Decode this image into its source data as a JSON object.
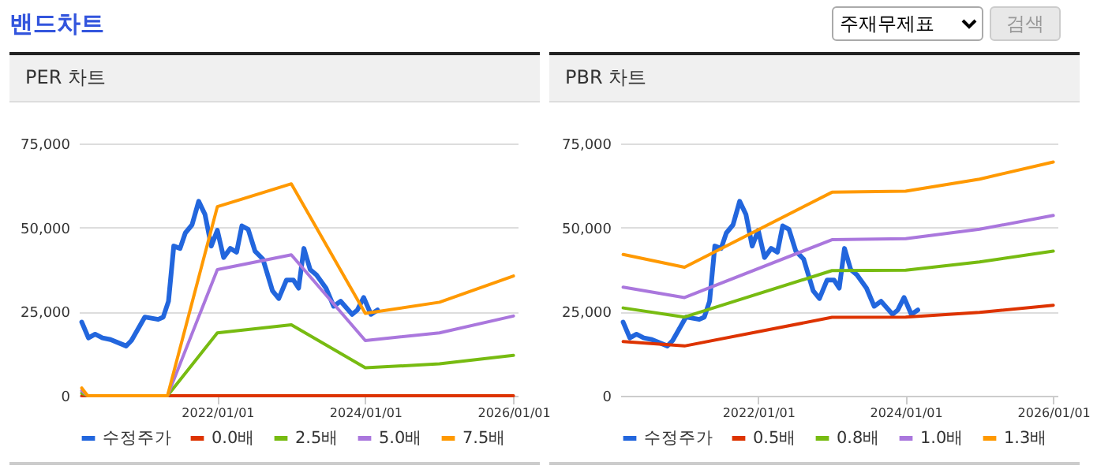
{
  "chart_data": [
    {
      "type": "other",
      "title": "밴드차트",
      "annotations": [
        "주재무제표",
        "검색"
      ]
    },
    {
      "type": "line",
      "title": "PER 차트",
      "xlim": [
        "2020-02-18",
        "2026-01-22"
      ],
      "ylim": [
        0,
        75000
      ],
      "xticks": [
        {
          "value": "2022-01-01",
          "label": "2022/01/01"
        },
        {
          "value": "2024-01-01",
          "label": "2024/01/01"
        },
        {
          "value": "2026-01-01",
          "label": "2026/01/01"
        }
      ],
      "yticks": [
        0,
        {
          "value": 25000,
          "label": "25,000"
        },
        {
          "value": 50000,
          "label": "50,000"
        },
        {
          "value": 75000,
          "label": "75,000"
        }
      ],
      "grid": "y",
      "legend": "bottom",
      "series": [
        {
          "name": "수정주가",
          "color": "#2266dd",
          "x": [
            "2020-03-03",
            "2020-04-05",
            "2020-05-08",
            "2020-06-13",
            "2020-07-23",
            "2020-10-08",
            "2020-11-03",
            "2021-01-08",
            "2021-03-15",
            "2021-04-09",
            "2021-05-05",
            "2021-05-31",
            "2021-07-01",
            "2021-07-27",
            "2021-08-29",
            "2021-10-01",
            "2021-11-01",
            "2021-12-02",
            "2022-01-01",
            "2022-02-01",
            "2022-03-06",
            "2022-04-06",
            "2022-05-02",
            "2022-06-02",
            "2022-07-06",
            "2022-08-14",
            "2022-09-30",
            "2022-10-31",
            "2022-12-08",
            "2023-01-11",
            "2023-02-06",
            "2023-03-04",
            "2023-04-04",
            "2023-05-05",
            "2023-06-21",
            "2023-07-29",
            "2023-09-01",
            "2023-10-28",
            "2023-11-23",
            "2023-12-24",
            "2024-01-29",
            "2024-03-01"
          ],
          "values": [
            21900,
            17200,
            18300,
            17200,
            16700,
            14800,
            16400,
            23400,
            22700,
            23400,
            28100,
            44500,
            43800,
            48400,
            50800,
            57800,
            53900,
            44500,
            49200,
            41100,
            43800,
            42700,
            50500,
            49500,
            43000,
            40600,
            31200,
            28900,
            34400,
            34400,
            32000,
            43800,
            37500,
            35900,
            32000,
            26600,
            28100,
            24200,
            25500,
            29200,
            24200,
            25500
          ]
        },
        {
          "name": "0.0배",
          "color": "#dd3300",
          "x": [
            "2020-03-03",
            "2020-04-01",
            "2021-04-30",
            "2022-01-01",
            "2023-01-01",
            "2024-01-01",
            "2025-01-01",
            "2026-01-01"
          ],
          "values": [
            0,
            0,
            0,
            0,
            0,
            0,
            0,
            0
          ]
        },
        {
          "name": "2.5배",
          "color": "#77bb11",
          "x": [
            "2020-03-03",
            "2020-04-01",
            "2021-04-30",
            "2022-01-01",
            "2023-01-01",
            "2024-01-01",
            "2025-01-01",
            "2026-01-01"
          ],
          "values": [
            800,
            0,
            0,
            18700,
            21100,
            8300,
            9500,
            12000
          ]
        },
        {
          "name": "5.0배",
          "color": "#aa77dd",
          "x": [
            "2020-03-03",
            "2020-04-01",
            "2021-04-30",
            "2022-01-01",
            "2023-01-01",
            "2024-01-01",
            "2025-01-01",
            "2026-01-01"
          ],
          "values": [
            1500,
            0,
            0,
            37500,
            41900,
            16400,
            18700,
            23700
          ]
        },
        {
          "name": "7.5배",
          "color": "#ff9900",
          "x": [
            "2020-03-03",
            "2020-04-01",
            "2021-04-30",
            "2022-01-01",
            "2023-01-01",
            "2024-01-01",
            "2025-01-01",
            "2026-01-01"
          ],
          "values": [
            2300,
            0,
            0,
            56200,
            63000,
            24500,
            27800,
            35600
          ]
        }
      ]
    },
    {
      "type": "line",
      "title": "PBR 차트",
      "xlim": [
        "2020-02-18",
        "2026-01-22"
      ],
      "ylim": [
        0,
        75000
      ],
      "xticks": [
        {
          "value": "2022-01-01",
          "label": "2022/01/01"
        },
        {
          "value": "2024-01-01",
          "label": "2024/01/01"
        },
        {
          "value": "2026-01-01",
          "label": "2026/01/01"
        }
      ],
      "yticks": [
        0,
        {
          "value": 25000,
          "label": "25,000"
        },
        {
          "value": 50000,
          "label": "50,000"
        },
        {
          "value": 75000,
          "label": "75,000"
        }
      ],
      "grid": "y",
      "legend": "bottom",
      "series": [
        {
          "name": "수정주가",
          "color": "#2266dd",
          "x": [
            "2020-03-03",
            "2020-04-05",
            "2020-05-08",
            "2020-06-13",
            "2020-07-23",
            "2020-10-08",
            "2020-11-03",
            "2021-01-08",
            "2021-03-15",
            "2021-04-09",
            "2021-05-05",
            "2021-05-31",
            "2021-07-01",
            "2021-07-27",
            "2021-08-29",
            "2021-10-01",
            "2021-11-01",
            "2021-12-02",
            "2022-01-01",
            "2022-02-01",
            "2022-03-06",
            "2022-04-06",
            "2022-05-02",
            "2022-06-02",
            "2022-07-06",
            "2022-08-14",
            "2022-09-30",
            "2022-10-31",
            "2022-12-08",
            "2023-01-11",
            "2023-02-06",
            "2023-03-04",
            "2023-04-04",
            "2023-05-05",
            "2023-06-21",
            "2023-07-29",
            "2023-09-01",
            "2023-10-28",
            "2023-11-23",
            "2023-12-24",
            "2024-01-29",
            "2024-03-01"
          ],
          "values": [
            21900,
            17200,
            18300,
            17200,
            16700,
            14800,
            16400,
            23400,
            22700,
            23400,
            28100,
            44500,
            43800,
            48400,
            50800,
            57800,
            53900,
            44500,
            49200,
            41100,
            43800,
            42700,
            50500,
            49500,
            43000,
            40600,
            31200,
            28900,
            34400,
            34400,
            32000,
            43800,
            37500,
            35900,
            32000,
            26600,
            28100,
            24200,
            25500,
            29200,
            24200,
            25500
          ]
        },
        {
          "name": "0.5배",
          "color": "#dd3300",
          "x": [
            "2020-03-03",
            "2021-01-01",
            "2023-01-01",
            "2024-01-01",
            "2025-01-01",
            "2026-01-01"
          ],
          "values": [
            16100,
            14800,
            23300,
            23400,
            24800,
            26900
          ]
        },
        {
          "name": "0.8배",
          "color": "#77bb11",
          "x": [
            "2020-03-03",
            "2021-01-01",
            "2023-01-01",
            "2024-01-01",
            "2025-01-01",
            "2026-01-01"
          ],
          "values": [
            26100,
            23400,
            37200,
            37300,
            39800,
            43000
          ]
        },
        {
          "name": "1.0배",
          "color": "#aa77dd",
          "x": [
            "2020-03-03",
            "2021-01-01",
            "2023-01-01",
            "2024-01-01",
            "2025-01-01",
            "2026-01-01"
          ],
          "values": [
            32300,
            29200,
            46400,
            46700,
            49500,
            53600
          ]
        },
        {
          "name": "1.3배",
          "color": "#ff9900",
          "x": [
            "2020-03-03",
            "2021-01-01",
            "2023-01-01",
            "2024-01-01",
            "2025-01-01",
            "2026-01-01"
          ],
          "values": [
            42000,
            38200,
            60500,
            60800,
            64400,
            69500
          ]
        }
      ]
    }
  ]
}
